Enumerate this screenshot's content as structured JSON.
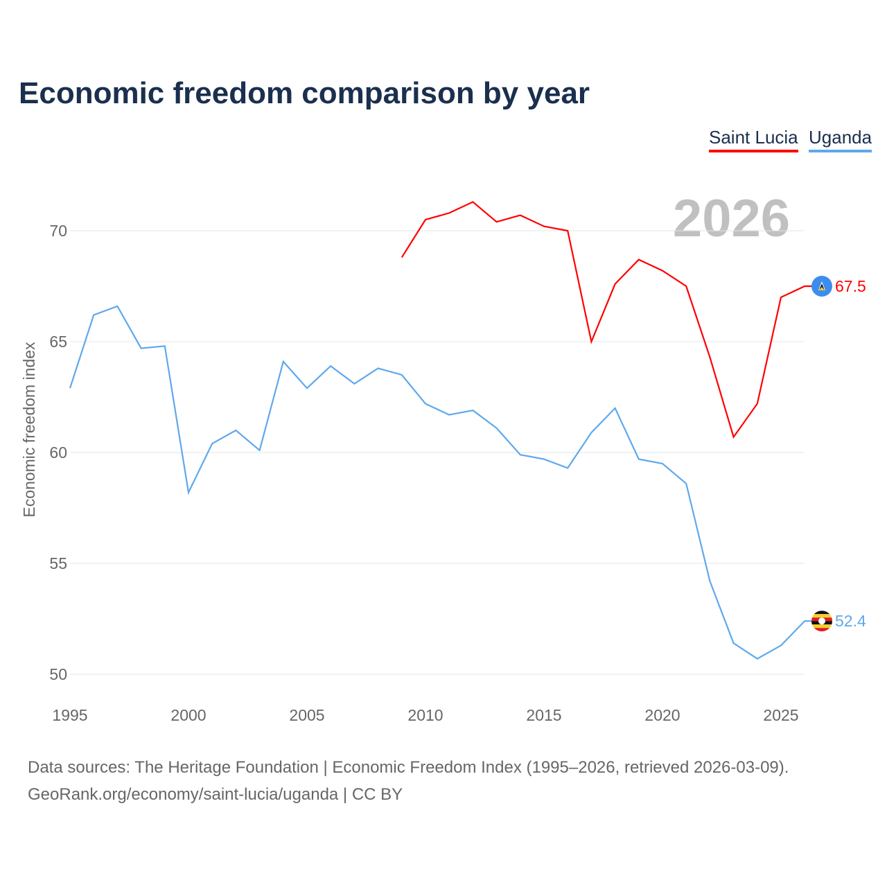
{
  "chart_data": {
    "type": "line",
    "title": "Economic freedom comparison by year",
    "ylabel": "Economic freedom index",
    "xlabel": "",
    "xlim": [
      1995,
      2026
    ],
    "ylim": [
      50,
      70
    ],
    "yticks": [
      "50",
      "55",
      "60",
      "65",
      "70"
    ],
    "xticks": [
      "1995",
      "2000",
      "2005",
      "2010",
      "2015",
      "2020",
      "2025"
    ],
    "watermark_year": "2026",
    "grid": true,
    "legend_position": "top-right",
    "series": [
      {
        "name": "Saint Lucia",
        "color": "#ff0000",
        "end_label": "67.5",
        "x": [
          2009,
          2010,
          2011,
          2012,
          2013,
          2014,
          2015,
          2016,
          2017,
          2018,
          2019,
          2020,
          2021,
          2022,
          2023,
          2024,
          2025,
          2026
        ],
        "values": [
          68.8,
          70.5,
          70.8,
          71.3,
          70.4,
          70.7,
          70.2,
          70.0,
          65.0,
          67.6,
          68.7,
          68.2,
          67.5,
          64.3,
          60.7,
          62.2,
          67.0,
          67.5
        ]
      },
      {
        "name": "Uganda",
        "color": "#5ea8ec",
        "end_label": "52.4",
        "x": [
          1995,
          1996,
          1997,
          1998,
          1999,
          2000,
          2001,
          2002,
          2003,
          2004,
          2005,
          2006,
          2007,
          2008,
          2009,
          2010,
          2011,
          2012,
          2013,
          2014,
          2015,
          2016,
          2017,
          2018,
          2019,
          2020,
          2021,
          2022,
          2023,
          2024,
          2025,
          2026
        ],
        "values": [
          62.9,
          66.2,
          66.6,
          64.7,
          64.8,
          58.2,
          60.4,
          61.0,
          60.1,
          64.1,
          62.9,
          63.9,
          63.1,
          63.8,
          63.5,
          62.2,
          61.7,
          61.9,
          61.1,
          59.9,
          59.7,
          59.3,
          60.9,
          62.0,
          59.7,
          59.5,
          58.6,
          54.2,
          51.4,
          50.7,
          51.3,
          52.4
        ]
      }
    ]
  },
  "source_line1": "Data sources: The Heritage Foundation | Economic Freedom Index (1995–2026, retrieved 2026-03-09).",
  "source_line2": "GeoRank.org/economy/saint-lucia/uganda | CC BY"
}
